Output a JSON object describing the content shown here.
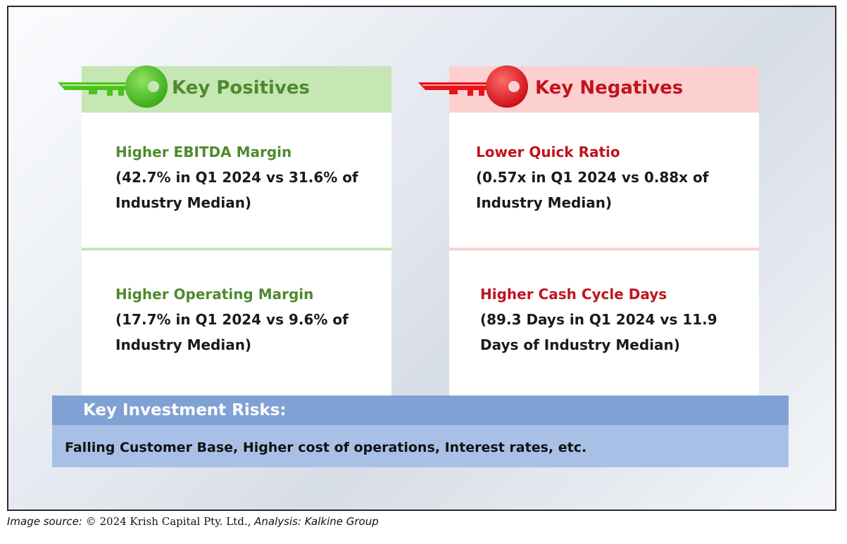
{
  "positives": {
    "header": "Key Positives",
    "items": [
      {
        "title": "Higher EBITDA Margin",
        "line1": "(42.7% in Q1 2024 vs 31.6% of",
        "line2": "Industry Median)"
      },
      {
        "title": "Higher Operating Margin",
        "line1": "(17.7% in Q1 2024 vs 9.6% of",
        "line2": "Industry Median)"
      }
    ]
  },
  "negatives": {
    "header": "Key Negatives",
    "items": [
      {
        "title": "Lower Quick Ratio",
        "line1": "(0.57x in Q1 2024 vs 0.88x of",
        "line2": "Industry Median)"
      },
      {
        "title": "Higher Cash Cycle Days",
        "line1": "(89.3 Days in Q1 2024 vs 11.9",
        "line2": "Days of Industry Median)"
      }
    ]
  },
  "risks": {
    "title": "Key Investment Risks:",
    "text": "Falling Customer Base, Higher cost of operations, Interest rates, etc."
  },
  "source": {
    "prefix": "Image source: ",
    "middle": "© 2024 Krish Capital Pty. Ltd.,",
    "suffix": " Analysis: Kalkine Group"
  },
  "colors": {
    "positive_header_bg": "#c6e6b4",
    "positive_text": "#4f8a2e",
    "positive_key": "#4cc21f",
    "negative_header_bg": "#fdd0d0",
    "negative_text": "#c0141e",
    "negative_key": "#e8121a",
    "risk_header_bg": "#7fa1d4",
    "risk_body_bg": "#a8c0e6"
  },
  "icons": {
    "positive": "key-icon",
    "negative": "key-icon"
  }
}
